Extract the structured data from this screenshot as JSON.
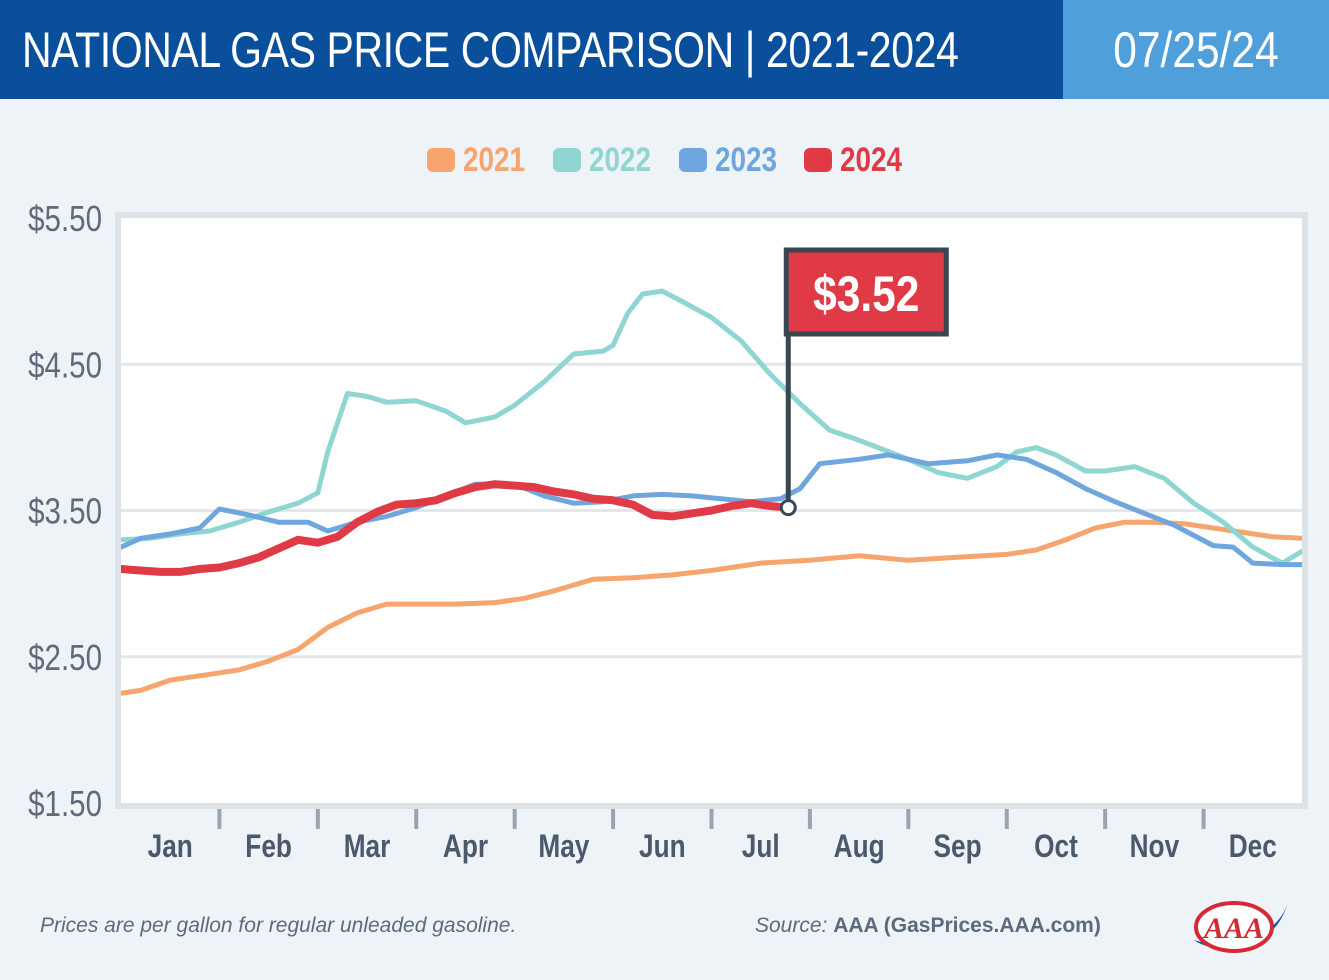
{
  "header": {
    "title": "NATIONAL GAS PRICE COMPARISON | 2021-2024",
    "date": "07/25/24"
  },
  "footer": {
    "note": "Prices are per gallon for regular unleaded gasoline.",
    "source_label": "Source:",
    "source_value": "AAA (GasPrices.AAA.com)"
  },
  "logo": {
    "text": "AAA",
    "icon": "aaa-logo-icon"
  },
  "colors": {
    "header_bg": "#0a4f9c",
    "date_bg": "#4fa0da",
    "grid": "#e3e7ec",
    "axis": "#555f6a",
    "callout_bg": "#e03a46",
    "callout_border": "#3a4652"
  },
  "chart_data": {
    "type": "line",
    "title": "NATIONAL GAS PRICE COMPARISON | 2021-2024",
    "xlabel": "",
    "ylabel": "",
    "ylim": [
      1.5,
      5.5
    ],
    "yticks": [
      1.5,
      2.5,
      3.5,
      4.5,
      5.5
    ],
    "ytick_labels": [
      "$1.50",
      "$2.50",
      "$3.50",
      "$4.50",
      "$5.50"
    ],
    "categories": [
      "Jan",
      "Feb",
      "Mar",
      "Apr",
      "May",
      "Jun",
      "Jul",
      "Aug",
      "Sep",
      "Oct",
      "Nov",
      "Dec"
    ],
    "grid": true,
    "legend_placement": "top-center",
    "series": [
      {
        "name": "2021",
        "color": "#f6a56e",
        "x": [
          0,
          0.2,
          0.5,
          0.9,
          1.2,
          1.5,
          1.8,
          2.1,
          2.4,
          2.7,
          3,
          3.4,
          3.8,
          4.1,
          4.4,
          4.8,
          5.2,
          5.6,
          6,
          6.5,
          7,
          7.5,
          8,
          8.5,
          9,
          9.3,
          9.6,
          9.9,
          10.2,
          10.5,
          10.8,
          11.1,
          11.4,
          11.7,
          12
        ],
        "values": [
          2.25,
          2.27,
          2.34,
          2.38,
          2.41,
          2.47,
          2.55,
          2.7,
          2.8,
          2.86,
          2.86,
          2.86,
          2.87,
          2.9,
          2.95,
          3.03,
          3.04,
          3.06,
          3.09,
          3.14,
          3.16,
          3.19,
          3.16,
          3.18,
          3.2,
          3.23,
          3.3,
          3.38,
          3.42,
          3.42,
          3.41,
          3.38,
          3.35,
          3.32,
          3.31
        ]
      },
      {
        "name": "2022",
        "color": "#8fd6d3",
        "x": [
          0,
          0.3,
          0.6,
          0.9,
          1.2,
          1.5,
          1.8,
          2,
          2.1,
          2.3,
          2.5,
          2.7,
          3,
          3.3,
          3.5,
          3.8,
          4,
          4.3,
          4.6,
          4.9,
          5,
          5.15,
          5.3,
          5.5,
          5.7,
          6,
          6.3,
          6.6,
          6.9,
          7.2,
          7.5,
          8,
          8.3,
          8.6,
          8.9,
          9.1,
          9.3,
          9.5,
          9.8,
          10,
          10.3,
          10.6,
          10.9,
          11.2,
          11.5,
          11.8,
          12
        ],
        "values": [
          3.3,
          3.31,
          3.34,
          3.36,
          3.42,
          3.49,
          3.55,
          3.62,
          3.9,
          4.3,
          4.28,
          4.24,
          4.25,
          4.18,
          4.1,
          4.14,
          4.22,
          4.38,
          4.57,
          4.59,
          4.63,
          4.85,
          4.98,
          5.0,
          4.93,
          4.82,
          4.66,
          4.43,
          4.23,
          4.05,
          3.98,
          3.85,
          3.76,
          3.72,
          3.8,
          3.9,
          3.93,
          3.88,
          3.77,
          3.77,
          3.8,
          3.72,
          3.55,
          3.42,
          3.25,
          3.14,
          3.22
        ]
      },
      {
        "name": "2023",
        "color": "#6ea6dd",
        "x": [
          0,
          0.2,
          0.5,
          0.8,
          1,
          1.3,
          1.6,
          1.9,
          2.1,
          2.4,
          2.7,
          3,
          3.3,
          3.6,
          4,
          4.3,
          4.6,
          4.9,
          5.2,
          5.5,
          5.8,
          6.1,
          6.4,
          6.7,
          6.9,
          7.1,
          7.5,
          7.8,
          8.2,
          8.6,
          8.9,
          9.2,
          9.5,
          9.8,
          10.1,
          10.4,
          10.7,
          10.9,
          11.1,
          11.3,
          11.5,
          11.8,
          12
        ],
        "values": [
          3.25,
          3.31,
          3.34,
          3.38,
          3.51,
          3.47,
          3.42,
          3.42,
          3.36,
          3.42,
          3.46,
          3.52,
          3.6,
          3.68,
          3.68,
          3.6,
          3.55,
          3.56,
          3.6,
          3.61,
          3.6,
          3.58,
          3.56,
          3.58,
          3.65,
          3.82,
          3.85,
          3.88,
          3.82,
          3.84,
          3.88,
          3.85,
          3.76,
          3.65,
          3.56,
          3.48,
          3.4,
          3.33,
          3.26,
          3.25,
          3.14,
          3.13,
          3.13
        ]
      },
      {
        "name": "2024",
        "color": "#e03a46",
        "x": [
          0,
          0.2,
          0.4,
          0.6,
          0.8,
          1,
          1.2,
          1.4,
          1.6,
          1.8,
          2,
          2.2,
          2.4,
          2.6,
          2.8,
          3,
          3.2,
          3.4,
          3.6,
          3.8,
          4,
          4.2,
          4.4,
          4.6,
          4.8,
          5,
          5.2,
          5.4,
          5.6,
          5.8,
          6,
          6.2,
          6.4,
          6.6,
          6.78
        ],
        "values": [
          3.1,
          3.09,
          3.08,
          3.08,
          3.1,
          3.11,
          3.14,
          3.18,
          3.24,
          3.3,
          3.28,
          3.32,
          3.42,
          3.49,
          3.54,
          3.55,
          3.57,
          3.62,
          3.66,
          3.68,
          3.67,
          3.66,
          3.63,
          3.61,
          3.58,
          3.57,
          3.54,
          3.47,
          3.46,
          3.48,
          3.5,
          3.53,
          3.55,
          3.53,
          3.52
        ]
      }
    ],
    "annotations": [
      {
        "text": "$3.52",
        "x": 6.78,
        "y": 3.52,
        "series": "2024"
      }
    ]
  }
}
